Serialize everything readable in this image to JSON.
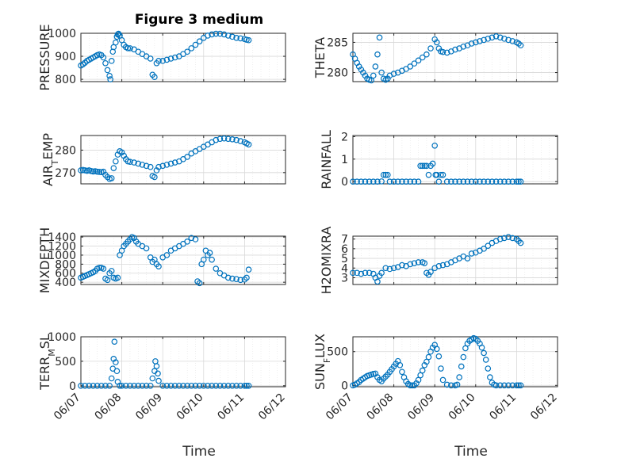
{
  "figure": {
    "title": "Figure 3 medium",
    "xlabel": "Time"
  },
  "chart_data": [
    {
      "type": "scatter",
      "ylabel": "PRESSURE",
      "ylim": [
        790,
        1000
      ],
      "yticks": [
        800,
        900,
        1000
      ],
      "xlim": [
        0,
        5
      ],
      "xtick_labels": [
        "06/07",
        "06/08",
        "06/09",
        "06/10",
        "06/11",
        "06/12"
      ],
      "grid": true,
      "series": [
        {
          "x": [
            0.0,
            0.05,
            0.1,
            0.15,
            0.2,
            0.25,
            0.3,
            0.35,
            0.4,
            0.45,
            0.5,
            0.55,
            0.6,
            0.65,
            0.7,
            0.72,
            0.75,
            0.78,
            0.8,
            0.85,
            0.88,
            0.9,
            0.92,
            0.95,
            1.0,
            1.05,
            1.1,
            1.15,
            1.2,
            1.3,
            1.4,
            1.5,
            1.6,
            1.7,
            1.75,
            1.8,
            1.85,
            1.9,
            2.0,
            2.1,
            2.2,
            2.3,
            2.4,
            2.5,
            2.6,
            2.7,
            2.8,
            2.9,
            3.0,
            3.1,
            3.2,
            3.3,
            3.4,
            3.5,
            3.6,
            3.7,
            3.8,
            3.9,
            4.0,
            4.05,
            4.1
          ],
          "y": [
            860,
            865,
            872,
            880,
            885,
            890,
            895,
            900,
            905,
            908,
            905,
            895,
            870,
            840,
            815,
            800,
            880,
            920,
            940,
            960,
            985,
            995,
            998,
            990,
            970,
            950,
            940,
            935,
            935,
            930,
            920,
            910,
            900,
            890,
            820,
            810,
            870,
            880,
            880,
            885,
            890,
            895,
            900,
            910,
            920,
            935,
            950,
            965,
            980,
            990,
            995,
            998,
            998,
            995,
            990,
            985,
            980,
            978,
            975,
            972,
            970
          ]
        }
      ]
    },
    {
      "type": "scatter",
      "ylabel": "THETA",
      "ylim": [
        278.5,
        286.5
      ],
      "yticks": [
        280,
        285
      ],
      "xlim": [
        0,
        5
      ],
      "xtick_labels": [
        "06/07",
        "06/08",
        "06/09",
        "06/10",
        "06/11",
        "06/12"
      ],
      "grid": true,
      "series": [
        {
          "x": [
            0.0,
            0.05,
            0.1,
            0.15,
            0.2,
            0.25,
            0.3,
            0.35,
            0.4,
            0.45,
            0.5,
            0.55,
            0.6,
            0.65,
            0.7,
            0.75,
            0.8,
            0.85,
            0.9,
            1.0,
            1.1,
            1.2,
            1.3,
            1.4,
            1.5,
            1.6,
            1.7,
            1.8,
            1.9,
            2.0,
            2.05,
            2.1,
            2.15,
            2.2,
            2.3,
            2.4,
            2.5,
            2.6,
            2.7,
            2.8,
            2.9,
            3.0,
            3.1,
            3.2,
            3.3,
            3.4,
            3.5,
            3.6,
            3.7,
            3.8,
            3.9,
            4.0,
            4.05,
            4.1
          ],
          "y": [
            283,
            282.3,
            281.6,
            281,
            280.5,
            280,
            279.5,
            279,
            278.8,
            278.7,
            279.5,
            281,
            283,
            285.8,
            280,
            279,
            278.8,
            279,
            279.5,
            279.8,
            280,
            280.3,
            280.6,
            281,
            281.5,
            282,
            282.5,
            283,
            284,
            285.5,
            285,
            284,
            283.5,
            283.4,
            283.3,
            283.5,
            283.8,
            284,
            284.3,
            284.5,
            284.8,
            285,
            285.2,
            285.4,
            285.6,
            285.8,
            286,
            285.8,
            285.6,
            285.4,
            285.2,
            285,
            284.8,
            284.5
          ]
        }
      ]
    },
    {
      "type": "scatter",
      "ylabel": "AIR_TEMP",
      "ylim": [
        265,
        286.5
      ],
      "yticks": [
        270,
        280
      ],
      "xlim": [
        0,
        5
      ],
      "xtick_labels": [
        "06/07",
        "06/08",
        "06/09",
        "06/10",
        "06/11",
        "06/12"
      ],
      "grid": true,
      "series": [
        {
          "x": [
            0.0,
            0.05,
            0.1,
            0.15,
            0.2,
            0.25,
            0.3,
            0.35,
            0.4,
            0.45,
            0.5,
            0.55,
            0.6,
            0.65,
            0.7,
            0.75,
            0.8,
            0.85,
            0.9,
            0.95,
            1.0,
            1.05,
            1.1,
            1.15,
            1.2,
            1.3,
            1.4,
            1.5,
            1.6,
            1.7,
            1.75,
            1.8,
            1.85,
            1.9,
            2.0,
            2.1,
            2.2,
            2.3,
            2.4,
            2.5,
            2.6,
            2.7,
            2.8,
            2.9,
            3.0,
            3.1,
            3.2,
            3.3,
            3.4,
            3.5,
            3.6,
            3.7,
            3.8,
            3.9,
            4.0,
            4.05,
            4.1
          ],
          "y": [
            271,
            271.2,
            271,
            270.8,
            271,
            270.7,
            270.5,
            270.6,
            270.4,
            270.3,
            270.2,
            270.4,
            269,
            268,
            267.2,
            267.5,
            272,
            275,
            278,
            279.5,
            279,
            277.5,
            276,
            275,
            274.8,
            274.5,
            274,
            273.5,
            273,
            272.5,
            268.5,
            268,
            271,
            272.5,
            273,
            273.5,
            274,
            274.5,
            275,
            276,
            277,
            278.5,
            279.5,
            280.5,
            281.5,
            282.5,
            283.5,
            284.5,
            285,
            285.2,
            285,
            284.8,
            284.5,
            284,
            283.5,
            283,
            282.5
          ]
        }
      ]
    },
    {
      "type": "scatter",
      "ylabel": "RAINFALL",
      "ylim": [
        -0.1,
        2.05
      ],
      "yticks": [
        0,
        1,
        2
      ],
      "xlim": [
        0,
        5
      ],
      "xtick_labels": [
        "06/07",
        "06/08",
        "06/09",
        "06/10",
        "06/11",
        "06/12"
      ],
      "grid": true,
      "series": [
        {
          "x": [
            0.0,
            0.1,
            0.2,
            0.3,
            0.4,
            0.5,
            0.6,
            0.7,
            0.75,
            0.8,
            0.85,
            0.9,
            1.0,
            1.1,
            1.2,
            1.3,
            1.4,
            1.5,
            1.6,
            1.65,
            1.7,
            1.75,
            1.8,
            1.85,
            1.9,
            1.95,
            2.0,
            2.02,
            2.05,
            2.1,
            2.15,
            2.2,
            2.3,
            2.4,
            2.5,
            2.6,
            2.7,
            2.8,
            2.9,
            3.0,
            3.1,
            3.2,
            3.3,
            3.4,
            3.5,
            3.6,
            3.7,
            3.8,
            3.9,
            4.0,
            4.05,
            4.1
          ],
          "y": [
            0,
            0,
            0,
            0,
            0,
            0,
            0,
            0.01,
            0.3,
            0.3,
            0.3,
            0,
            0,
            0,
            0,
            0,
            0,
            0,
            0,
            0.7,
            0.7,
            0.7,
            0.7,
            0.3,
            0.7,
            0.8,
            1.6,
            0.3,
            0.3,
            0,
            0.3,
            0.3,
            0,
            0,
            0,
            0,
            0,
            0,
            0,
            0,
            0,
            0,
            0,
            0,
            0,
            0,
            0,
            0,
            0,
            0,
            0,
            0
          ]
        }
      ]
    },
    {
      "type": "scatter",
      "ylabel": "MIXDEPTH",
      "ylim": [
        350,
        1420
      ],
      "yticks": [
        400,
        600,
        800,
        1000,
        1200,
        1400
      ],
      "xlim": [
        0,
        5
      ],
      "xtick_labels": [
        "06/07",
        "06/08",
        "06/09",
        "06/10",
        "06/11",
        "06/12"
      ],
      "grid": true,
      "series": [
        {
          "x": [
            0.0,
            0.05,
            0.1,
            0.15,
            0.2,
            0.25,
            0.3,
            0.35,
            0.4,
            0.45,
            0.5,
            0.55,
            0.6,
            0.65,
            0.7,
            0.75,
            0.8,
            0.85,
            0.9,
            0.95,
            1.0,
            1.05,
            1.1,
            1.15,
            1.2,
            1.25,
            1.3,
            1.35,
            1.4,
            1.5,
            1.6,
            1.7,
            1.75,
            1.8,
            1.85,
            1.9,
            2.0,
            2.1,
            2.2,
            2.3,
            2.4,
            2.5,
            2.6,
            2.7,
            2.8,
            2.85,
            2.9,
            2.95,
            3.0,
            3.05,
            3.1,
            3.15,
            3.2,
            3.3,
            3.4,
            3.5,
            3.6,
            3.7,
            3.8,
            3.9,
            4.0,
            4.05,
            4.1
          ],
          "y": [
            500,
            520,
            540,
            560,
            580,
            600,
            620,
            650,
            700,
            720,
            720,
            700,
            480,
            450,
            600,
            650,
            500,
            480,
            500,
            1000,
            1100,
            1200,
            1250,
            1300,
            1350,
            1400,
            1380,
            1300,
            1250,
            1200,
            1150,
            950,
            850,
            900,
            800,
            750,
            950,
            1000,
            1100,
            1150,
            1200,
            1250,
            1300,
            1380,
            1350,
            420,
            380,
            800,
            900,
            1100,
            1000,
            1050,
            900,
            700,
            600,
            550,
            500,
            480,
            470,
            450,
            460,
            500,
            680
          ]
        }
      ]
    },
    {
      "type": "scatter",
      "ylabel": "H2OMIXRA",
      "ylim": [
        2.3,
        7.3
      ],
      "yticks": [
        3,
        4,
        5,
        6,
        7
      ],
      "xlim": [
        0,
        5
      ],
      "xtick_labels": [
        "06/07",
        "06/08",
        "06/09",
        "06/10",
        "06/11",
        "06/12"
      ],
      "grid": true,
      "series": [
        {
          "x": [
            0.0,
            0.1,
            0.2,
            0.3,
            0.4,
            0.5,
            0.55,
            0.6,
            0.65,
            0.7,
            0.8,
            0.9,
            1.0,
            1.1,
            1.2,
            1.3,
            1.4,
            1.5,
            1.6,
            1.7,
            1.75,
            1.8,
            1.85,
            1.9,
            2.0,
            2.1,
            2.2,
            2.3,
            2.4,
            2.5,
            2.6,
            2.7,
            2.8,
            2.9,
            3.0,
            3.1,
            3.2,
            3.3,
            3.4,
            3.5,
            3.6,
            3.7,
            3.8,
            3.9,
            4.0,
            4.05,
            4.1
          ],
          "y": [
            3.5,
            3.5,
            3.4,
            3.5,
            3.5,
            3.4,
            3.0,
            2.6,
            3.2,
            3.5,
            4.0,
            3.9,
            4.0,
            4.1,
            4.3,
            4.2,
            4.4,
            4.5,
            4.6,
            4.6,
            4.5,
            3.5,
            3.3,
            3.6,
            4.0,
            4.2,
            4.3,
            4.4,
            4.6,
            4.8,
            5.0,
            5.2,
            5.0,
            5.5,
            5.6,
            5.8,
            6.0,
            6.3,
            6.6,
            6.8,
            7.0,
            7.1,
            7.2,
            7.1,
            7.0,
            6.8,
            6.6
          ]
        }
      ]
    },
    {
      "type": "scatter",
      "ylabel": "TERR_MSL",
      "ylim": [
        -20,
        1000
      ],
      "yticks": [
        0,
        500,
        1000
      ],
      "xlim": [
        0,
        5
      ],
      "xtick_labels": [
        "06/07",
        "06/08",
        "06/09",
        "06/10",
        "06/11",
        "06/12"
      ],
      "grid": true,
      "series": [
        {
          "x": [
            0.0,
            0.1,
            0.2,
            0.3,
            0.4,
            0.5,
            0.6,
            0.7,
            0.75,
            0.78,
            0.8,
            0.82,
            0.85,
            0.88,
            0.9,
            0.95,
            1.0,
            1.1,
            1.2,
            1.3,
            1.4,
            1.5,
            1.6,
            1.7,
            1.75,
            1.8,
            1.82,
            1.85,
            1.88,
            1.9,
            2.0,
            2.1,
            2.2,
            2.3,
            2.4,
            2.5,
            2.6,
            2.7,
            2.8,
            2.9,
            3.0,
            3.1,
            3.2,
            3.3,
            3.4,
            3.5,
            3.6,
            3.7,
            3.8,
            3.9,
            4.0,
            4.05,
            4.1
          ],
          "y": [
            0,
            0,
            0,
            0,
            0,
            0,
            0,
            0,
            150,
            350,
            550,
            900,
            480,
            300,
            80,
            0,
            0,
            0,
            0,
            0,
            0,
            0,
            0,
            0,
            150,
            300,
            500,
            400,
            250,
            100,
            0,
            0,
            0,
            0,
            0,
            0,
            0,
            0,
            0,
            0,
            0,
            0,
            0,
            0,
            0,
            0,
            0,
            0,
            0,
            0,
            0,
            0,
            0
          ]
        }
      ]
    },
    {
      "type": "scatter",
      "ylabel": "SUN_FLUX",
      "ylim": [
        -20,
        720
      ],
      "yticks": [
        0,
        500
      ],
      "xlim": [
        0,
        5
      ],
      "xtick_labels": [
        "06/07",
        "06/08",
        "06/09",
        "06/10",
        "06/11",
        "06/12"
      ],
      "grid": true,
      "series": [
        {
          "x": [
            0.0,
            0.05,
            0.1,
            0.15,
            0.2,
            0.25,
            0.3,
            0.35,
            0.4,
            0.45,
            0.5,
            0.55,
            0.6,
            0.65,
            0.7,
            0.75,
            0.8,
            0.85,
            0.9,
            0.95,
            1.0,
            1.05,
            1.1,
            1.15,
            1.2,
            1.25,
            1.3,
            1.35,
            1.4,
            1.45,
            1.5,
            1.55,
            1.6,
            1.65,
            1.7,
            1.75,
            1.8,
            1.85,
            1.9,
            1.95,
            2.0,
            2.05,
            2.1,
            2.15,
            2.2,
            2.3,
            2.4,
            2.5,
            2.55,
            2.6,
            2.65,
            2.7,
            2.75,
            2.8,
            2.85,
            2.9,
            2.95,
            3.0,
            3.05,
            3.1,
            3.15,
            3.2,
            3.25,
            3.3,
            3.35,
            3.4,
            3.45,
            3.5,
            3.6,
            3.7,
            3.8,
            3.9,
            4.0,
            4.05,
            4.1
          ],
          "y": [
            0,
            10,
            30,
            50,
            80,
            100,
            120,
            140,
            150,
            160,
            170,
            175,
            120,
            80,
            60,
            100,
            130,
            160,
            200,
            240,
            280,
            320,
            360,
            300,
            200,
            120,
            60,
            20,
            0,
            0,
            0,
            30,
            80,
            150,
            220,
            300,
            350,
            420,
            500,
            560,
            600,
            540,
            430,
            250,
            80,
            10,
            0,
            0,
            10,
            120,
            280,
            420,
            550,
            620,
            660,
            680,
            700,
            690,
            660,
            620,
            560,
            480,
            380,
            250,
            120,
            40,
            10,
            0,
            0,
            0,
            0,
            0,
            0,
            0,
            0
          ]
        }
      ]
    }
  ]
}
